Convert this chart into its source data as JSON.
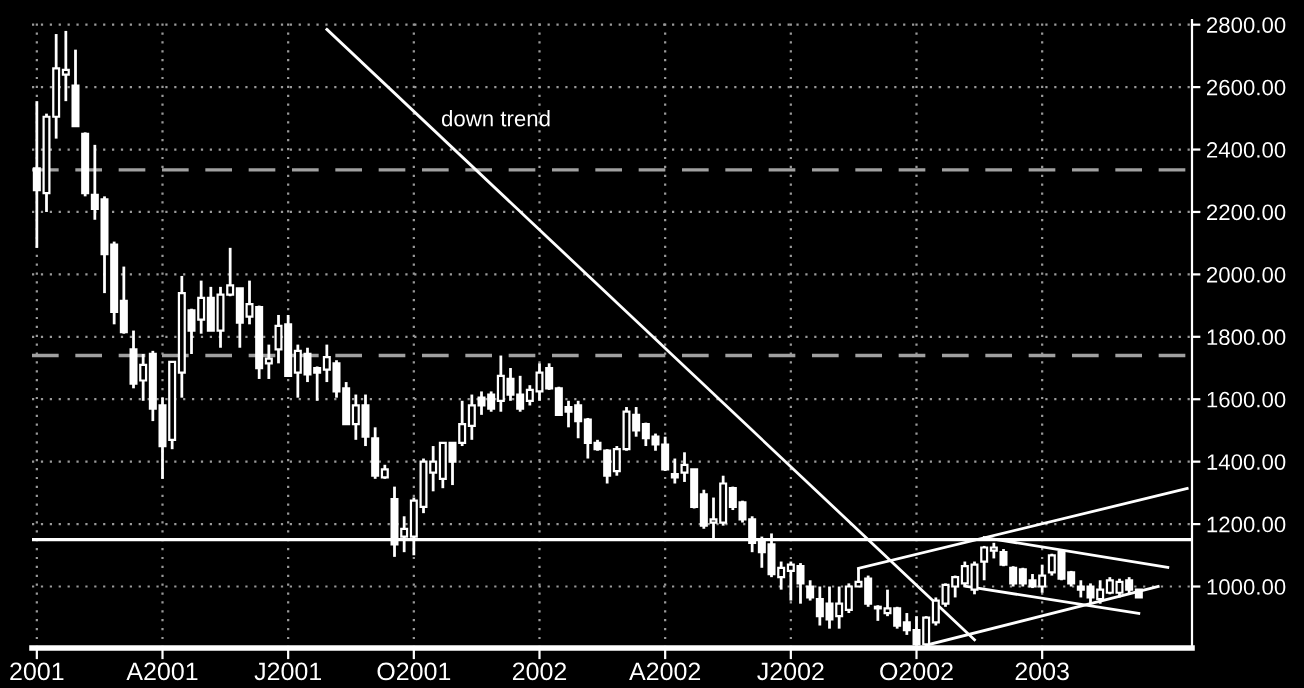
{
  "chart_data": {
    "type": "candlestick",
    "categories": [
      "2001",
      null,
      null,
      null,
      null,
      null,
      null,
      null,
      null,
      null,
      null,
      null,
      null,
      "A2001",
      null,
      null,
      null,
      null,
      null,
      null,
      null,
      null,
      null,
      null,
      null,
      null,
      "J2001",
      null,
      null,
      null,
      null,
      null,
      null,
      null,
      null,
      null,
      null,
      null,
      null,
      "O2001",
      null,
      null,
      null,
      null,
      null,
      null,
      null,
      null,
      null,
      null,
      null,
      null,
      "2002",
      null,
      null,
      null,
      null,
      null,
      null,
      null,
      null,
      null,
      null,
      null,
      null,
      "A2002",
      null,
      null,
      null,
      null,
      null,
      null,
      null,
      null,
      null,
      null,
      null,
      null,
      "J2002",
      null,
      null,
      null,
      null,
      null,
      null,
      null,
      null,
      null,
      null,
      null,
      null,
      "O2002",
      null,
      null,
      null,
      null,
      null,
      null,
      null,
      null,
      null,
      null,
      null,
      null,
      "2003",
      null,
      null,
      null,
      null,
      null,
      null,
      null,
      null,
      null,
      null,
      null,
      null,
      null,
      null,
      null
    ],
    "ohlc": [
      [
        2340,
        2555,
        2085,
        2270
      ],
      [
        2260,
        2515,
        2200,
        2505
      ],
      [
        2505,
        2770,
        2435,
        2660
      ],
      [
        2640,
        2780,
        2555,
        2655
      ],
      [
        2605,
        2720,
        2475,
        2475
      ],
      [
        2450,
        2455,
        2250,
        2260
      ],
      [
        2255,
        2415,
        2175,
        2210
      ],
      [
        2240,
        2250,
        1940,
        2065
      ],
      [
        2095,
        2105,
        1840,
        1880
      ],
      [
        1915,
        2025,
        1810,
        1815
      ],
      [
        1760,
        1820,
        1635,
        1650
      ],
      [
        1660,
        1745,
        1595,
        1710
      ],
      [
        1745,
        1755,
        1530,
        1570
      ],
      [
        1580,
        1605,
        1345,
        1450
      ],
      [
        1470,
        1720,
        1440,
        1720
      ],
      [
        1685,
        1995,
        1605,
        1940
      ],
      [
        1885,
        1890,
        1745,
        1820
      ],
      [
        1855,
        1980,
        1810,
        1925
      ],
      [
        1925,
        1960,
        1820,
        1820
      ],
      [
        1820,
        1960,
        1765,
        1935
      ],
      [
        1935,
        2085,
        1930,
        1965
      ],
      [
        1955,
        1955,
        1765,
        1845
      ],
      [
        1865,
        1980,
        1840,
        1905
      ],
      [
        1895,
        1900,
        1665,
        1700
      ],
      [
        1715,
        1775,
        1665,
        1730
      ],
      [
        1760,
        1870,
        1715,
        1835
      ],
      [
        1840,
        1870,
        1675,
        1675
      ],
      [
        1685,
        1775,
        1605,
        1755
      ],
      [
        1745,
        1765,
        1655,
        1680
      ],
      [
        1700,
        1705,
        1595,
        1685
      ],
      [
        1695,
        1775,
        1655,
        1735
      ],
      [
        1715,
        1725,
        1605,
        1625
      ],
      [
        1635,
        1655,
        1520,
        1520
      ],
      [
        1520,
        1615,
        1470,
        1580
      ],
      [
        1580,
        1615,
        1450,
        1480
      ],
      [
        1475,
        1510,
        1345,
        1355
      ],
      [
        1350,
        1390,
        1345,
        1375
      ],
      [
        1280,
        1320,
        1095,
        1135
      ],
      [
        1160,
        1225,
        1110,
        1185
      ],
      [
        1160,
        1285,
        1100,
        1275
      ],
      [
        1255,
        1410,
        1235,
        1400
      ],
      [
        1365,
        1450,
        1305,
        1400
      ],
      [
        1345,
        1460,
        1315,
        1460
      ],
      [
        1460,
        1460,
        1325,
        1400
      ],
      [
        1460,
        1595,
        1450,
        1520
      ],
      [
        1515,
        1615,
        1470,
        1580
      ],
      [
        1605,
        1625,
        1550,
        1580
      ],
      [
        1615,
        1625,
        1560,
        1570
      ],
      [
        1595,
        1740,
        1560,
        1675
      ],
      [
        1665,
        1700,
        1595,
        1615
      ],
      [
        1615,
        1675,
        1560,
        1570
      ],
      [
        1595,
        1645,
        1580,
        1630
      ],
      [
        1625,
        1715,
        1595,
        1685
      ],
      [
        1700,
        1715,
        1630,
        1635
      ],
      [
        1635,
        1640,
        1550,
        1550
      ],
      [
        1575,
        1595,
        1510,
        1560
      ],
      [
        1580,
        1595,
        1475,
        1530
      ],
      [
        1535,
        1540,
        1410,
        1460
      ],
      [
        1460,
        1470,
        1435,
        1440
      ],
      [
        1435,
        1440,
        1330,
        1355
      ],
      [
        1370,
        1450,
        1355,
        1440
      ],
      [
        1440,
        1575,
        1435,
        1560
      ],
      [
        1550,
        1575,
        1480,
        1500
      ],
      [
        1520,
        1525,
        1450,
        1475
      ],
      [
        1480,
        1490,
        1435,
        1455
      ],
      [
        1455,
        1480,
        1370,
        1375
      ],
      [
        1360,
        1410,
        1330,
        1350
      ],
      [
        1365,
        1430,
        1335,
        1390
      ],
      [
        1375,
        1375,
        1250,
        1255
      ],
      [
        1295,
        1310,
        1185,
        1195
      ],
      [
        1205,
        1285,
        1150,
        1215
      ],
      [
        1205,
        1355,
        1195,
        1330
      ],
      [
        1315,
        1320,
        1245,
        1255
      ],
      [
        1270,
        1275,
        1205,
        1215
      ],
      [
        1215,
        1225,
        1110,
        1140
      ],
      [
        1150,
        1160,
        1060,
        1110
      ],
      [
        1135,
        1170,
        1030,
        1040
      ],
      [
        1030,
        1080,
        990,
        1060
      ],
      [
        1050,
        1080,
        955,
        1070
      ],
      [
        1065,
        1075,
        945,
        1010
      ],
      [
        1000,
        1020,
        955,
        965
      ],
      [
        960,
        1000,
        875,
        905
      ],
      [
        945,
        1000,
        865,
        895
      ],
      [
        905,
        1000,
        865,
        945
      ],
      [
        925,
        1010,
        915,
        1000
      ],
      [
        1000,
        1060,
        1000,
        1015
      ],
      [
        1025,
        1035,
        935,
        945
      ],
      [
        935,
        940,
        890,
        930
      ],
      [
        915,
        990,
        905,
        930
      ],
      [
        930,
        935,
        865,
        875
      ],
      [
        885,
        915,
        845,
        860
      ],
      [
        860,
        905,
        810,
        815
      ],
      [
        815,
        905,
        810,
        900
      ],
      [
        885,
        965,
        875,
        955
      ],
      [
        945,
        1010,
        935,
        1005
      ],
      [
        1000,
        1035,
        965,
        1030
      ],
      [
        1010,
        1080,
        1000,
        1065
      ],
      [
        990,
        1080,
        975,
        1070
      ],
      [
        1080,
        1130,
        1020,
        1125
      ],
      [
        1115,
        1140,
        1090,
        1125
      ],
      [
        1110,
        1120,
        1065,
        1070
      ],
      [
        1060,
        1065,
        1000,
        1010
      ],
      [
        1055,
        1060,
        1000,
        1010
      ],
      [
        1020,
        1040,
        995,
        1000
      ],
      [
        1000,
        1070,
        980,
        1035
      ],
      [
        1045,
        1105,
        1035,
        1100
      ],
      [
        1110,
        1115,
        1020,
        1025
      ],
      [
        1045,
        1050,
        1000,
        1010
      ],
      [
        1000,
        1020,
        965,
        990
      ],
      [
        1000,
        1010,
        945,
        965
      ],
      [
        960,
        1020,
        945,
        990
      ],
      [
        980,
        1030,
        975,
        1020
      ],
      [
        980,
        1025,
        965,
        1015
      ],
      [
        1020,
        1030,
        975,
        990
      ],
      [
        990,
        990,
        965,
        965
      ],
      null,
      null,
      null,
      null,
      null
    ],
    "series": [
      {
        "type": "line",
        "values": [
          null,
          null,
          null,
          null,
          null,
          null,
          null,
          null,
          null,
          null,
          null,
          null,
          null,
          null,
          null,
          null,
          null,
          null,
          null,
          null,
          null,
          null,
          null,
          null,
          null,
          null,
          null,
          null,
          null,
          null,
          2785,
          null,
          null,
          null,
          null,
          null,
          null,
          null,
          null,
          null,
          null,
          null,
          null,
          null,
          null,
          null,
          null,
          null,
          null,
          null,
          null,
          null,
          null,
          null,
          null,
          null,
          null,
          null,
          null,
          null,
          null,
          null,
          null,
          null,
          null,
          null,
          null,
          null,
          null,
          null,
          null,
          null,
          null,
          null,
          null,
          null,
          null,
          null,
          null,
          null,
          null,
          null,
          null,
          null,
          null,
          null,
          null,
          null,
          null,
          null,
          null,
          null,
          null,
          null,
          null,
          null,
          null,
          829,
          null,
          null,
          null,
          null,
          null,
          null,
          null,
          null,
          null,
          null,
          null,
          null,
          null,
          null,
          null,
          null,
          null,
          null,
          null,
          null,
          null,
          null
        ],
        "color": "#ffffff"
      },
      {
        "type": "line",
        "values": [
          null,
          null,
          null,
          null,
          null,
          null,
          null,
          null,
          null,
          null,
          null,
          null,
          null,
          null,
          null,
          null,
          null,
          null,
          null,
          null,
          null,
          null,
          null,
          null,
          null,
          null,
          null,
          null,
          null,
          null,
          null,
          null,
          null,
          null,
          null,
          null,
          null,
          null,
          null,
          null,
          null,
          null,
          null,
          null,
          null,
          null,
          null,
          null,
          null,
          null,
          null,
          null,
          null,
          null,
          null,
          null,
          null,
          null,
          null,
          null,
          null,
          null,
          null,
          null,
          null,
          null,
          null,
          null,
          null,
          null,
          null,
          null,
          null,
          null,
          null,
          null,
          null,
          null,
          null,
          null,
          null,
          null,
          null,
          null,
          null,
          null,
          null,
          null,
          null,
          null,
          null,
          null,
          812,
          null,
          null,
          null,
          null,
          null,
          null,
          null,
          null,
          null,
          null,
          null,
          null,
          null,
          null,
          null,
          null,
          null,
          null,
          null,
          null,
          null,
          null,
          null,
          1000,
          null,
          null,
          null
        ],
        "color": "#ffffff"
      },
      {
        "type": "line",
        "values": [
          null,
          null,
          null,
          null,
          null,
          null,
          null,
          null,
          null,
          null,
          null,
          null,
          null,
          null,
          null,
          null,
          null,
          null,
          null,
          null,
          null,
          null,
          null,
          null,
          null,
          null,
          null,
          null,
          null,
          null,
          null,
          null,
          null,
          null,
          null,
          null,
          null,
          null,
          null,
          null,
          null,
          null,
          null,
          null,
          null,
          null,
          null,
          null,
          null,
          null,
          null,
          null,
          null,
          null,
          null,
          null,
          null,
          null,
          null,
          null,
          null,
          null,
          null,
          null,
          null,
          null,
          null,
          null,
          null,
          null,
          null,
          null,
          null,
          null,
          null,
          null,
          null,
          null,
          null,
          null,
          null,
          null,
          null,
          null,
          null,
          1058,
          null,
          null,
          null,
          null,
          null,
          null,
          null,
          null,
          null,
          null,
          null,
          null,
          null,
          null,
          null,
          null,
          null,
          null,
          null,
          null,
          null,
          null,
          null,
          null,
          null,
          null,
          null,
          null,
          null,
          null,
          null,
          null,
          null,
          1314
        ],
        "color": "#ffffff"
      },
      {
        "type": "line",
        "values": [
          null,
          null,
          null,
          null,
          null,
          null,
          null,
          null,
          null,
          null,
          null,
          null,
          null,
          null,
          null,
          null,
          null,
          null,
          null,
          null,
          null,
          null,
          null,
          null,
          null,
          null,
          null,
          null,
          null,
          null,
          null,
          null,
          null,
          null,
          null,
          null,
          null,
          null,
          null,
          null,
          null,
          null,
          null,
          null,
          null,
          null,
          null,
          null,
          null,
          null,
          null,
          null,
          null,
          null,
          null,
          null,
          null,
          null,
          null,
          null,
          null,
          null,
          null,
          null,
          null,
          null,
          null,
          null,
          null,
          null,
          null,
          null,
          null,
          null,
          null,
          null,
          null,
          null,
          null,
          null,
          null,
          null,
          null,
          null,
          null,
          null,
          null,
          null,
          null,
          null,
          null,
          null,
          null,
          null,
          null,
          null,
          null,
          null,
          1157,
          null,
          null,
          null,
          null,
          null,
          null,
          null,
          null,
          null,
          null,
          null,
          null,
          null,
          null,
          null,
          null,
          null,
          null,
          1061,
          null,
          null
        ],
        "color": "#ffffff"
      },
      {
        "type": "line",
        "values": [
          null,
          null,
          null,
          null,
          null,
          null,
          null,
          null,
          null,
          null,
          null,
          null,
          null,
          null,
          null,
          null,
          null,
          null,
          null,
          null,
          null,
          null,
          null,
          null,
          null,
          null,
          null,
          null,
          null,
          null,
          null,
          null,
          null,
          null,
          null,
          null,
          null,
          null,
          null,
          null,
          null,
          null,
          null,
          null,
          null,
          null,
          null,
          null,
          null,
          null,
          null,
          null,
          null,
          null,
          null,
          null,
          null,
          null,
          null,
          null,
          null,
          null,
          null,
          null,
          null,
          null,
          null,
          null,
          null,
          null,
          null,
          null,
          null,
          null,
          null,
          null,
          null,
          null,
          null,
          null,
          null,
          null,
          null,
          null,
          null,
          null,
          null,
          null,
          null,
          null,
          null,
          null,
          null,
          null,
          null,
          null,
          1001,
          null,
          null,
          null,
          null,
          null,
          null,
          null,
          null,
          null,
          null,
          null,
          null,
          null,
          null,
          null,
          null,
          null,
          914,
          null,
          null,
          null,
          null,
          null
        ],
        "color": "#ffffff"
      }
    ],
    "color": "#ffffff",
    "annotations": [
      "down trend"
    ],
    "ref_lines": [
      {
        "axis": "y",
        "value": 2335,
        "color": "#a0a0a0",
        "line_style": "dashed"
      },
      {
        "axis": "y",
        "value": 1740,
        "color": "#a0a0a0",
        "line_style": "dashed"
      },
      {
        "axis": "y",
        "value": 1150,
        "color": "#ffffff",
        "line_style": "solid"
      }
    ],
    "ylim": [
      803,
      2815
    ],
    "yticks": [
      {
        "value": 1000,
        "label": "1000.00"
      },
      {
        "value": 1200,
        "label": "1200.00"
      },
      {
        "value": 1400,
        "label": "1400.00"
      },
      {
        "value": 1600,
        "label": "1600.00"
      },
      {
        "value": 1800,
        "label": "1800.00"
      },
      {
        "value": 2000,
        "label": "2000.00"
      },
      {
        "value": 2200,
        "label": "2200.00"
      },
      {
        "value": 2400,
        "label": "2400.00"
      },
      {
        "value": 2600,
        "label": "2600.00"
      },
      {
        "value": 2800,
        "label": "2800.00"
      }
    ],
    "grid": true
  }
}
